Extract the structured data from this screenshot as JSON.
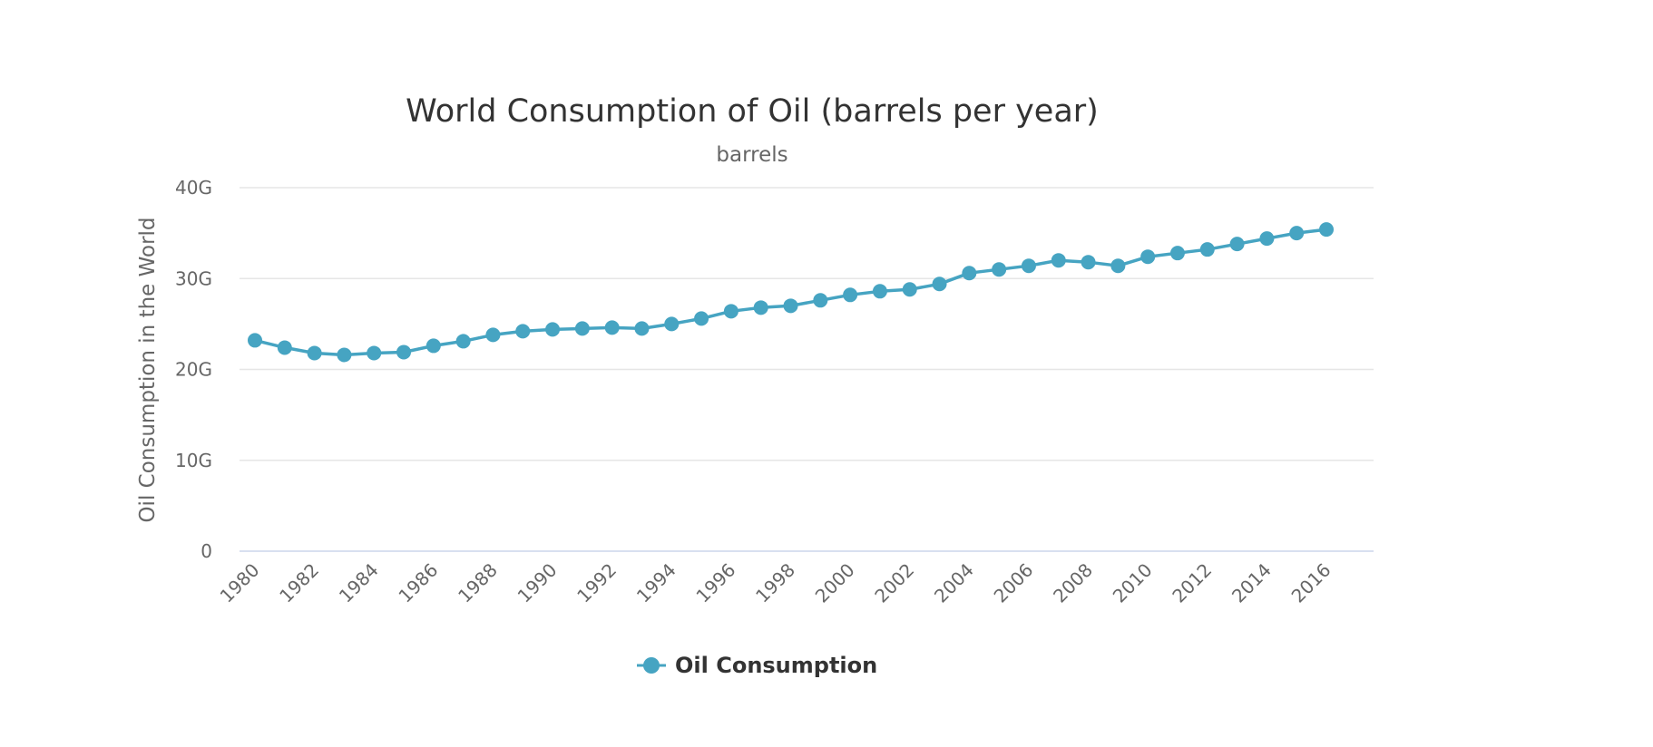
{
  "chart_data": {
    "type": "line",
    "title": "World Consumption of Oil (barrels per year)",
    "subtitle": "barrels",
    "xlabel": "",
    "ylabel": "Oil Consumption in the World",
    "ylim": [
      0,
      40
    ],
    "y_unit_suffix": "G",
    "y_ticks": [
      "0",
      "10G",
      "20G",
      "30G",
      "40G"
    ],
    "x_ticks": [
      "1980",
      "1982",
      "1984",
      "1986",
      "1988",
      "1990",
      "1992",
      "1994",
      "1996",
      "1998",
      "2000",
      "2002",
      "2004",
      "2006",
      "2008",
      "2010",
      "2012",
      "2014",
      "2016"
    ],
    "grid": true,
    "legend_position": "bottom-center",
    "colors": {
      "series": "#46a4c2",
      "grid": "#e6e6e6",
      "axis": "#ccd6eb"
    },
    "x": [
      1980,
      1981,
      1982,
      1983,
      1984,
      1985,
      1986,
      1987,
      1988,
      1989,
      1990,
      1991,
      1992,
      1993,
      1994,
      1995,
      1996,
      1997,
      1998,
      1999,
      2000,
      2001,
      2002,
      2003,
      2004,
      2005,
      2006,
      2007,
      2008,
      2009,
      2010,
      2011,
      2012,
      2013,
      2014,
      2015,
      2016
    ],
    "series": [
      {
        "name": "Oil Consumption",
        "values": [
          23.2,
          22.4,
          21.8,
          21.6,
          21.8,
          21.9,
          22.6,
          23.1,
          23.8,
          24.2,
          24.4,
          24.5,
          24.6,
          24.5,
          25.0,
          25.6,
          26.4,
          26.8,
          27.0,
          27.6,
          28.2,
          28.6,
          28.8,
          29.4,
          30.6,
          31.0,
          31.4,
          32.0,
          31.8,
          31.4,
          32.4,
          32.8,
          33.2,
          33.8,
          34.4,
          35.0,
          35.4
        ]
      }
    ]
  }
}
